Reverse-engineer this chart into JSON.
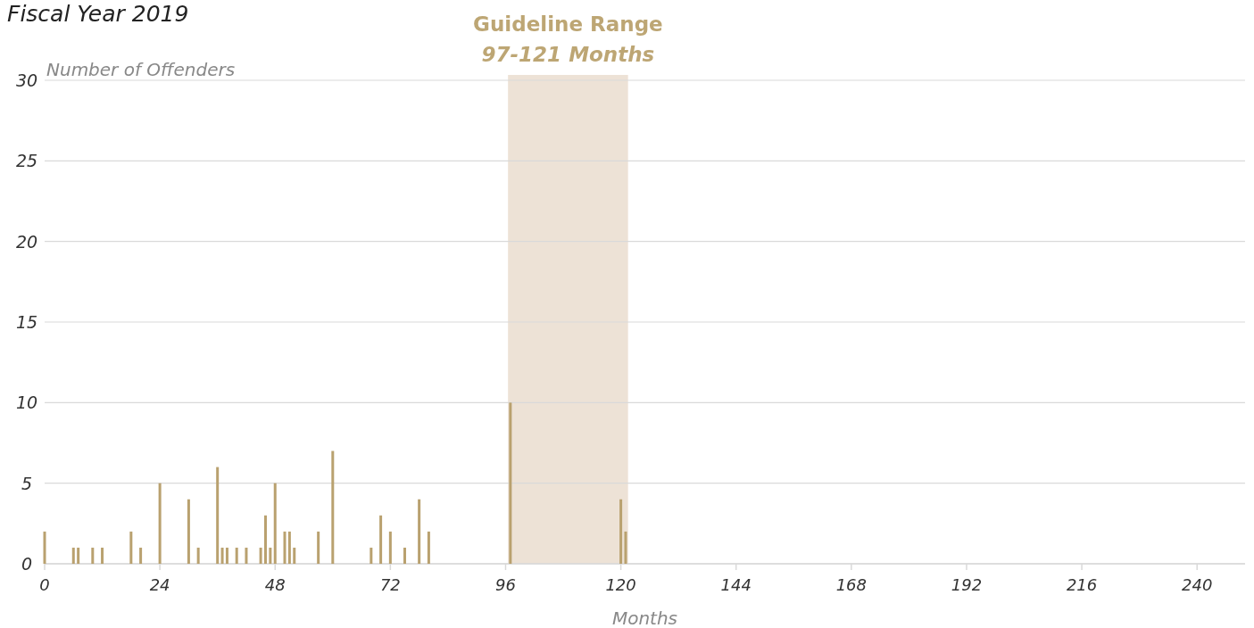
{
  "chart_data": {
    "type": "bar",
    "title": "Fiscal Year 2019",
    "xlabel": "Months",
    "ylabel": "Number of Offenders",
    "x": [
      0,
      6,
      7,
      10,
      12,
      18,
      20,
      24,
      30,
      32,
      36,
      37,
      38,
      40,
      42,
      45,
      46,
      47,
      48,
      50,
      51,
      52,
      57,
      60,
      68,
      70,
      72,
      75,
      78,
      80,
      97,
      120,
      121
    ],
    "values": [
      2,
      1,
      1,
      1,
      1,
      2,
      1,
      5,
      4,
      1,
      6,
      1,
      1,
      1,
      1,
      1,
      3,
      1,
      5,
      2,
      2,
      1,
      2,
      7,
      1,
      3,
      2,
      1,
      4,
      2,
      10,
      4,
      2
    ],
    "color": "#b9a16f",
    "xlim": [
      0,
      250
    ],
    "xticks": [
      0,
      24,
      48,
      72,
      96,
      120,
      144,
      168,
      192,
      216,
      240
    ],
    "ylim": [
      0,
      30
    ],
    "yticks": [
      0,
      5,
      10,
      15,
      20,
      25,
      30
    ],
    "grid": "y",
    "bands": [
      {
        "axis": "x",
        "from": 96.5,
        "to": 121.5,
        "label": "Guideline Range\n97-121 Months",
        "color": "#ede2d6"
      }
    ]
  }
}
